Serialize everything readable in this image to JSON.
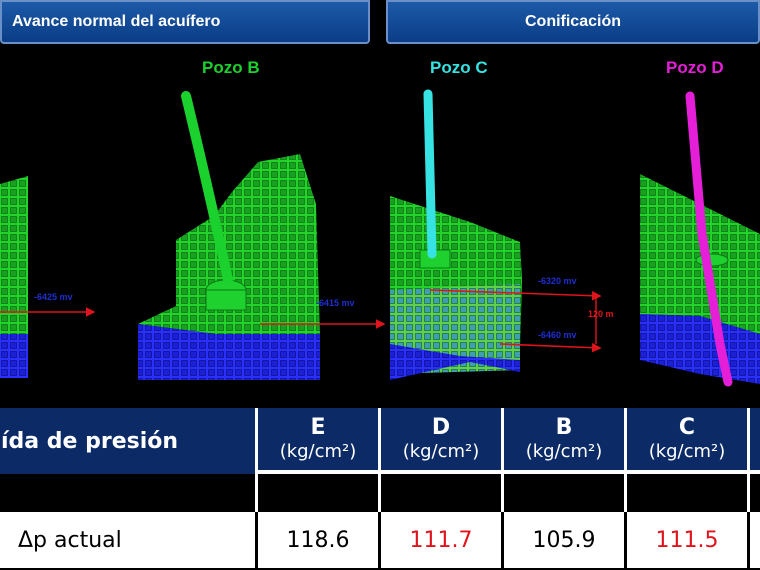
{
  "headers": {
    "left": "Avance normal del acuífero",
    "right": "Conificación"
  },
  "wells": {
    "b": {
      "label": "Pozo B",
      "color": "#1bd12e"
    },
    "c": {
      "label": "Pozo C",
      "color": "#37e2e2"
    },
    "d": {
      "label": "Pozo D",
      "color": "#e51fd8"
    }
  },
  "annotations": {
    "a1": "-6425 mv",
    "a2": "-6415 mv",
    "a3": "-6320 mv",
    "a4": "-6460 mv",
    "dist": "120 m"
  },
  "table": {
    "row_header": "ída de presión",
    "unit_label": "(kg/cm²)",
    "columns": [
      {
        "letter": "E",
        "value": "118.6",
        "highlight": false
      },
      {
        "letter": "D",
        "value": "111.7",
        "highlight": true
      },
      {
        "letter": "B",
        "value": "105.9",
        "highlight": false
      },
      {
        "letter": "C",
        "value": "111.5",
        "highlight": true
      }
    ],
    "row_label": "Δp actual"
  },
  "colors": {
    "header_blue": "#0c2b66",
    "grid_green": "#22d42a",
    "grid_blue": "#1b1fd6",
    "arrow_red": "#e0141c"
  }
}
